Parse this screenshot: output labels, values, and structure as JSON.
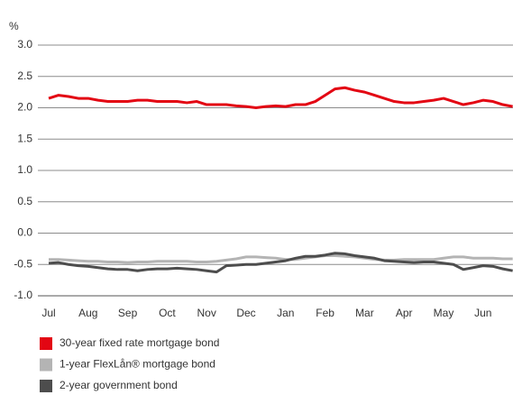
{
  "chart_data": {
    "type": "line",
    "y_label": "%",
    "categories": [
      "Jul",
      null,
      null,
      null,
      "Aug",
      null,
      null,
      null,
      "Sep",
      null,
      null,
      null,
      "Oct",
      null,
      null,
      null,
      "Nov",
      null,
      null,
      null,
      "Dec",
      null,
      null,
      null,
      "Jan",
      null,
      null,
      null,
      "Feb",
      null,
      null,
      null,
      "Mar",
      null,
      null,
      null,
      "Apr",
      null,
      null,
      null,
      "May",
      null,
      null,
      null,
      "Jun",
      null,
      null,
      null
    ],
    "series": [
      {
        "name": "30-year fixed rate mortgage bond",
        "color": "#e30613",
        "values": [
          2.15,
          2.2,
          2.18,
          2.15,
          2.15,
          2.12,
          2.1,
          2.1,
          2.1,
          2.12,
          2.12,
          2.1,
          2.1,
          2.1,
          2.08,
          2.1,
          2.05,
          2.05,
          2.05,
          2.03,
          2.02,
          2.0,
          2.02,
          2.03,
          2.02,
          2.05,
          2.05,
          2.1,
          2.2,
          2.3,
          2.32,
          2.28,
          2.25,
          2.2,
          2.15,
          2.1,
          2.08,
          2.08,
          2.1,
          2.12,
          2.15,
          2.1,
          2.05,
          2.08,
          2.12,
          2.1,
          2.05,
          2.02
        ]
      },
      {
        "name": "1-year FlexLån® mortgage bond",
        "color": "#b4b4b4",
        "values": [
          -0.42,
          -0.42,
          -0.43,
          -0.44,
          -0.45,
          -0.45,
          -0.46,
          -0.46,
          -0.47,
          -0.46,
          -0.46,
          -0.45,
          -0.45,
          -0.45,
          -0.45,
          -0.46,
          -0.46,
          -0.45,
          -0.43,
          -0.41,
          -0.38,
          -0.38,
          -0.39,
          -0.4,
          -0.42,
          -0.42,
          -0.4,
          -0.38,
          -0.36,
          -0.36,
          -0.37,
          -0.38,
          -0.4,
          -0.42,
          -0.43,
          -0.43,
          -0.42,
          -0.42,
          -0.42,
          -0.42,
          -0.4,
          -0.38,
          -0.38,
          -0.4,
          -0.4,
          -0.4,
          -0.41,
          -0.41
        ]
      },
      {
        "name": "2-year government bond",
        "color": "#4d4d4d",
        "values": [
          -0.48,
          -0.47,
          -0.5,
          -0.52,
          -0.53,
          -0.55,
          -0.57,
          -0.58,
          -0.58,
          -0.6,
          -0.58,
          -0.57,
          -0.57,
          -0.56,
          -0.57,
          -0.58,
          -0.6,
          -0.62,
          -0.52,
          -0.51,
          -0.5,
          -0.5,
          -0.48,
          -0.46,
          -0.44,
          -0.4,
          -0.37,
          -0.37,
          -0.35,
          -0.32,
          -0.33,
          -0.36,
          -0.38,
          -0.4,
          -0.44,
          -0.45,
          -0.46,
          -0.47,
          -0.46,
          -0.46,
          -0.48,
          -0.5,
          -0.58,
          -0.55,
          -0.52,
          -0.53,
          -0.57,
          -0.6
        ]
      }
    ],
    "ylim": [
      -1,
      3
    ],
    "yticks": [
      {
        "value": -1,
        "label": "-1.0"
      },
      -0.5,
      {
        "value": 0,
        "label": "0.0"
      },
      0.5,
      {
        "value": 1,
        "label": "1.0"
      },
      1.5,
      {
        "value": 2,
        "label": "2.0"
      },
      2.5,
      {
        "value": 3,
        "label": "3.0"
      }
    ],
    "grid": true,
    "legend": "bottom"
  }
}
